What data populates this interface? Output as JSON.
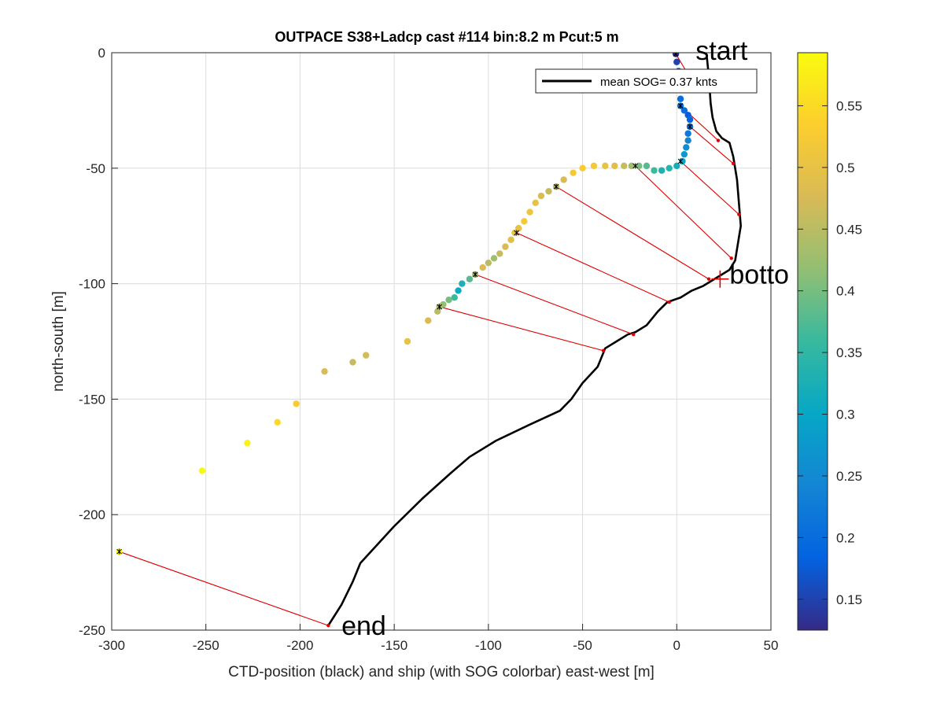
{
  "chart_data": {
    "type": "scatter",
    "title": "OUTPACE S38+Ladcp cast #114 bin:8.2 m  Pcut:5 m",
    "xlabel": "CTD-position (black) and ship (with SOG colorbar) east-west [m]",
    "ylabel": "north-south [m]",
    "xlim": [
      -300,
      50
    ],
    "ylim": [
      -250,
      0
    ],
    "xticks": [
      -300,
      -250,
      -200,
      -150,
      -100,
      -50,
      0,
      50
    ],
    "yticks": [
      -250,
      -200,
      -150,
      -100,
      -50,
      0
    ],
    "grid": true,
    "legend": {
      "label": "mean SOG=  0.37 knts",
      "placement": "top-right"
    },
    "colorbar": {
      "clim": [
        0.125,
        0.593
      ],
      "ticks": [
        0.15,
        0.2,
        0.25,
        0.3,
        0.35,
        0.4,
        0.45,
        0.5,
        0.55
      ],
      "colors": [
        "#352a87",
        "#0363e1",
        "#1485d4",
        "#06a7c6",
        "#38b99e",
        "#92bf73",
        "#d9ba56",
        "#fcce2e",
        "#f9fb0e"
      ]
    },
    "annotations": [
      {
        "text": "start",
        "x": 10,
        "y": -3
      },
      {
        "text": "botto",
        "x": 28,
        "y": -100
      },
      {
        "text": "end",
        "x": -178,
        "y": -252
      }
    ],
    "series": [
      {
        "name": "CTD position",
        "color": "#000000",
        "points": [
          [
            16,
            -2
          ],
          [
            17,
            -10
          ],
          [
            18,
            -22
          ],
          [
            19,
            -28
          ],
          [
            21,
            -34
          ],
          [
            24,
            -37
          ],
          [
            28,
            -39
          ],
          [
            30,
            -45
          ],
          [
            32,
            -55
          ],
          [
            33,
            -65
          ],
          [
            34,
            -75
          ],
          [
            32,
            -85
          ],
          [
            31,
            -90
          ],
          [
            28,
            -94
          ],
          [
            24,
            -96
          ],
          [
            20,
            -98
          ],
          [
            14,
            -101
          ],
          [
            8,
            -103
          ],
          [
            2,
            -106
          ],
          [
            -5,
            -108
          ],
          [
            -10,
            -112
          ],
          [
            -16,
            -118
          ],
          [
            -22,
            -121
          ],
          [
            -26,
            -122
          ],
          [
            -32,
            -125
          ],
          [
            -38,
            -128
          ],
          [
            -42,
            -136
          ],
          [
            -50,
            -143
          ],
          [
            -56,
            -150
          ],
          [
            -62,
            -155
          ],
          [
            -78,
            -161
          ],
          [
            -96,
            -168
          ],
          [
            -110,
            -175
          ],
          [
            -120,
            -182
          ],
          [
            -135,
            -193
          ],
          [
            -150,
            -205
          ],
          [
            -168,
            -221
          ],
          [
            -172,
            -229
          ],
          [
            -178,
            -239
          ],
          [
            -185,
            -248
          ]
        ]
      },
      {
        "name": "ship (SOG)",
        "points": [
          {
            "x": -0.5,
            "y": -0.5,
            "sog": 0.13
          },
          {
            "x": 0,
            "y": -4,
            "sog": 0.15
          },
          {
            "x": 1,
            "y": -8,
            "sog": 0.17
          },
          {
            "x": 1.5,
            "y": -12,
            "sog": 0.18
          },
          {
            "x": 1.5,
            "y": -16,
            "sog": 0.19
          },
          {
            "x": 2,
            "y": -20,
            "sog": 0.2
          },
          {
            "x": 2,
            "y": -23,
            "sog": 0.21
          },
          {
            "x": 4,
            "y": -25,
            "sog": 0.2
          },
          {
            "x": 6,
            "y": -27,
            "sog": 0.18
          },
          {
            "x": 7,
            "y": -29,
            "sog": 0.19
          },
          {
            "x": 7,
            "y": -32,
            "sog": 0.2
          },
          {
            "x": 6,
            "y": -35,
            "sog": 0.22
          },
          {
            "x": 6,
            "y": -38,
            "sog": 0.24
          },
          {
            "x": 5,
            "y": -41,
            "sog": 0.26
          },
          {
            "x": 4,
            "y": -44,
            "sog": 0.28
          },
          {
            "x": 3,
            "y": -47,
            "sog": 0.3
          },
          {
            "x": 0,
            "y": -49,
            "sog": 0.32
          },
          {
            "x": -4,
            "y": -50,
            "sog": 0.34
          },
          {
            "x": -8,
            "y": -51,
            "sog": 0.33
          },
          {
            "x": -12,
            "y": -51,
            "sog": 0.36
          },
          {
            "x": -16,
            "y": -49,
            "sog": 0.38
          },
          {
            "x": -20,
            "y": -49,
            "sog": 0.4
          },
          {
            "x": -24,
            "y": -49,
            "sog": 0.43
          },
          {
            "x": -28,
            "y": -49,
            "sog": 0.46
          },
          {
            "x": -33,
            "y": -49,
            "sog": 0.49
          },
          {
            "x": -38,
            "y": -49,
            "sog": 0.5
          },
          {
            "x": -44,
            "y": -49,
            "sog": 0.52
          },
          {
            "x": -50,
            "y": -50,
            "sog": 0.53
          },
          {
            "x": -55,
            "y": -52,
            "sog": 0.52
          },
          {
            "x": -60,
            "y": -55,
            "sog": 0.48
          },
          {
            "x": -64,
            "y": -58,
            "sog": 0.45
          },
          {
            "x": -68,
            "y": -60,
            "sog": 0.46
          },
          {
            "x": -72,
            "y": -62,
            "sog": 0.48
          },
          {
            "x": -75,
            "y": -65,
            "sog": 0.5
          },
          {
            "x": -78,
            "y": -69,
            "sog": 0.51
          },
          {
            "x": -81,
            "y": -73,
            "sog": 0.52
          },
          {
            "x": -84,
            "y": -76,
            "sog": 0.5
          },
          {
            "x": -86,
            "y": -78,
            "sog": 0.5
          },
          {
            "x": -88,
            "y": -81,
            "sog": 0.49
          },
          {
            "x": -91,
            "y": -84,
            "sog": 0.48
          },
          {
            "x": -94,
            "y": -87,
            "sog": 0.46
          },
          {
            "x": -97,
            "y": -89,
            "sog": 0.43
          },
          {
            "x": -100,
            "y": -91,
            "sog": 0.45
          },
          {
            "x": -103,
            "y": -93,
            "sog": 0.48
          },
          {
            "x": -107,
            "y": -96,
            "sog": 0.44
          },
          {
            "x": -110,
            "y": -98,
            "sog": 0.38
          },
          {
            "x": -114,
            "y": -100,
            "sog": 0.33
          },
          {
            "x": -116,
            "y": -103,
            "sog": 0.31
          },
          {
            "x": -118,
            "y": -106,
            "sog": 0.36
          },
          {
            "x": -121,
            "y": -107,
            "sog": 0.4
          },
          {
            "x": -124,
            "y": -109,
            "sog": 0.42
          },
          {
            "x": -126,
            "y": -110,
            "sog": 0.44
          },
          {
            "x": -127,
            "y": -112,
            "sog": 0.45
          },
          {
            "x": -132,
            "y": -116,
            "sog": 0.48
          },
          {
            "x": -143,
            "y": -125,
            "sog": 0.5
          },
          {
            "x": -165,
            "y": -131,
            "sog": 0.47
          },
          {
            "x": -172,
            "y": -134,
            "sog": 0.46
          },
          {
            "x": -187,
            "y": -138,
            "sog": 0.48
          },
          {
            "x": -202,
            "y": -152,
            "sog": 0.53
          },
          {
            "x": -212,
            "y": -160,
            "sog": 0.55
          },
          {
            "x": -228,
            "y": -169,
            "sog": 0.58
          },
          {
            "x": -252,
            "y": -181,
            "sog": 0.59
          },
          {
            "x": -296,
            "y": -216,
            "sog": 0.59
          }
        ]
      },
      {
        "name": "ship-CTD links",
        "color": "#e00000",
        "pairs": [
          [
            [
              -0.5,
              -0.5
            ],
            [
              5,
              -8
            ]
          ],
          [
            [
              2,
              -23
            ],
            [
              22,
              -38
            ]
          ],
          [
            [
              7,
              -32
            ],
            [
              30,
              -48
            ]
          ],
          [
            [
              2,
              -47
            ],
            [
              33,
              -70
            ]
          ],
          [
            [
              -22,
              -49
            ],
            [
              29,
              -89
            ]
          ],
          [
            [
              -64,
              -58
            ],
            [
              17,
              -98
            ]
          ],
          [
            [
              -85,
              -78
            ],
            [
              -4,
              -108
            ]
          ],
          [
            [
              -107,
              -96
            ],
            [
              -23,
              -122
            ]
          ],
          [
            [
              -126,
              -110
            ],
            [
              -39,
              -129
            ]
          ],
          [
            [
              -296,
              -216
            ],
            [
              -185,
              -248
            ]
          ]
        ]
      }
    ]
  }
}
